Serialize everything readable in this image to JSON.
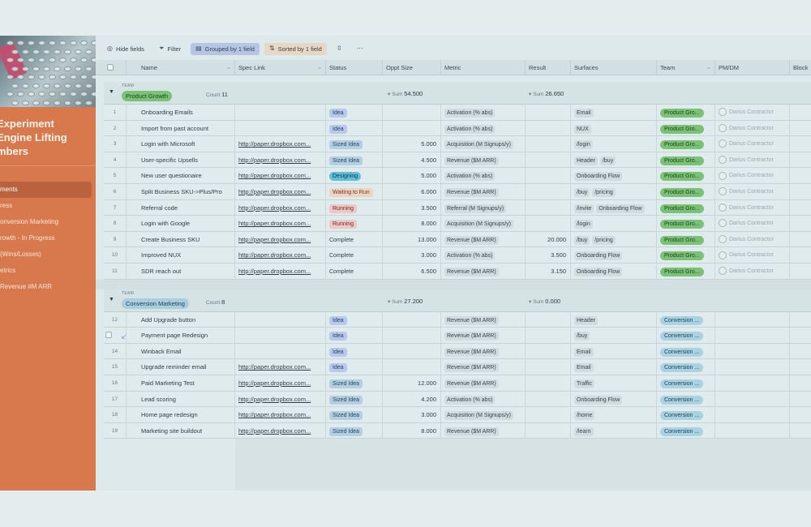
{
  "sidebar": {
    "title_lines": [
      "Experiment",
      "Engine Lifting",
      "mbers"
    ],
    "nav": [
      "ments",
      "ress",
      "onversion Marketing",
      "rowth - In Progress",
      "(Wins/Losses)",
      "etrics",
      "Revenue #M ARR"
    ],
    "active_index": 0
  },
  "toolbar": {
    "hide_fields": "Hide fields",
    "filter": "Filter",
    "grouped": "Grouped by 1 field",
    "sorted": "Sorted by 1 field"
  },
  "columns": {
    "name": "Name",
    "spec_link": "Spec Link",
    "status": "Status",
    "oppt_size": "Oppt Size",
    "metric": "Metric",
    "result": "Result",
    "surfaces": "Surfaces",
    "team": "Team",
    "pm_dm": "PM/DM",
    "block": "Block"
  },
  "groups": [
    {
      "label": "TEAM",
      "name": "Product Growth",
      "count_label": "Count",
      "count": "11",
      "oppt_sum_label": "Sum",
      "oppt_sum": "54.500",
      "result_sum_label": "Sum",
      "result_sum": "26.650",
      "rows": [
        {
          "n": "1",
          "name": "Onboarding Emails",
          "link": "",
          "status": "Idea",
          "sk": "idea",
          "oppt": "",
          "metric": "Activation (% abs)",
          "result": "",
          "surfaces": [
            "Email"
          ],
          "team": "Product Gro...",
          "pm": "Darius Contractor"
        },
        {
          "n": "2",
          "name": "Import from past account",
          "link": "",
          "status": "Idea",
          "sk": "idea",
          "oppt": "",
          "metric": "Activation (% abs)",
          "result": "",
          "surfaces": [
            "NUX"
          ],
          "team": "Product Gro...",
          "pm": "Darius Contractor"
        },
        {
          "n": "3",
          "name": "Login with Microsoft",
          "link": "http://paper.dropbox.com...",
          "status": "Sized Idea",
          "sk": "sized",
          "oppt": "5.000",
          "metric": "Acquisition (M Signups/y)",
          "result": "",
          "surfaces": [
            "/login"
          ],
          "team": "Product Gro...",
          "pm": "Darius Contractor"
        },
        {
          "n": "4",
          "name": "User-specific Upsells",
          "link": "http://paper.dropbox.com...",
          "status": "Sized Idea",
          "sk": "sized",
          "oppt": "4.500",
          "metric": "Revenue ($M ARR)",
          "result": "",
          "surfaces": [
            "Header",
            "/buy"
          ],
          "team": "Product Gro...",
          "pm": "Darius Contractor"
        },
        {
          "n": "5",
          "name": "New user questionaire",
          "link": "http://paper.dropbox.com...",
          "status": "Designing",
          "sk": "design",
          "oppt": "5.000",
          "metric": "Activation (% abs)",
          "result": "",
          "surfaces": [
            "Onboarding Flow"
          ],
          "team": "Product Gro...",
          "pm": "Darius Contractor"
        },
        {
          "n": "6",
          "name": "Split Business SKU->Plus/Pro",
          "link": "http://paper.dropbox.com...",
          "status": "Waiting to Run",
          "sk": "wait",
          "oppt": "6.000",
          "metric": "Revenue ($M ARR)",
          "result": "",
          "surfaces": [
            "/buy",
            "/pricing"
          ],
          "team": "Product Gro...",
          "pm": "Darius Contractor"
        },
        {
          "n": "7",
          "name": "Referral code",
          "link": "http://paper.dropbox.com...",
          "status": "Running",
          "sk": "run",
          "oppt": "3.500",
          "metric": "Referral (M Signups/y)",
          "result": "",
          "surfaces": [
            "/invite",
            "Onboarding Flow"
          ],
          "team": "Product Gro...",
          "pm": "Darius Contractor"
        },
        {
          "n": "8",
          "name": "Login with Google",
          "link": "http://paper.dropbox.com...",
          "status": "Running",
          "sk": "run",
          "oppt": "8.000",
          "metric": "Acquisition (M Signups/y)",
          "result": "",
          "surfaces": [
            "/login"
          ],
          "team": "Product Gro...",
          "pm": "Darius Contractor"
        },
        {
          "n": "9",
          "name": "Create Business SKU",
          "link": "http://paper.dropbox.com...",
          "status": "Complete",
          "sk": "complete",
          "oppt": "13.000",
          "metric": "Revenue ($M ARR)",
          "result": "20.000",
          "surfaces": [
            "/buy",
            "/pricing"
          ],
          "team": "Product Gro...",
          "pm": "Darius Contractor"
        },
        {
          "n": "10",
          "name": "Improved NUX",
          "link": "http://paper.dropbox.com...",
          "status": "Complete",
          "sk": "complete",
          "oppt": "3.000",
          "metric": "Activation (% abs)",
          "result": "3.500",
          "surfaces": [
            "Onboarding Flow"
          ],
          "team": "Product Gro...",
          "pm": "Darius Contractor"
        },
        {
          "n": "11",
          "name": "SDR reach out",
          "link": "http://paper.dropbox.com...",
          "status": "Complete",
          "sk": "complete",
          "oppt": "6.500",
          "metric": "Revenue ($M ARR)",
          "result": "3.150",
          "surfaces": [
            "Onboarding Flow"
          ],
          "team": "Product Gro...",
          "pm": "Darius Contractor"
        }
      ]
    },
    {
      "label": "TEAM",
      "name": "Conversion Marketing",
      "count_label": "Count",
      "count": "8",
      "oppt_sum_label": "Sum",
      "oppt_sum": "27.200",
      "result_sum_label": "Sum",
      "result_sum": "0.000",
      "rows": [
        {
          "n": "12",
          "name": "Add Upgrade button",
          "link": "",
          "status": "Idea",
          "sk": "idea",
          "oppt": "",
          "metric": "Revenue ($M ARR)",
          "result": "",
          "surfaces": [
            "Header"
          ],
          "team": "Conversion ...",
          "pm": ""
        },
        {
          "n": "13",
          "name": "Payment page Redesign",
          "link": "",
          "status": "Idea",
          "sk": "idea",
          "oppt": "",
          "metric": "Revenue ($M ARR)",
          "result": "",
          "surfaces": [
            "/buy"
          ],
          "team": "Conversion ...",
          "pm": ""
        },
        {
          "n": "14",
          "name": "Winback Email",
          "link": "",
          "status": "Idea",
          "sk": "idea",
          "oppt": "",
          "metric": "Revenue ($M ARR)",
          "result": "",
          "surfaces": [
            "Email"
          ],
          "team": "Conversion ...",
          "pm": ""
        },
        {
          "n": "15",
          "name": "Upgrade reminder email",
          "link": "http://paper.dropbox.com...",
          "status": "Idea",
          "sk": "idea",
          "oppt": "",
          "metric": "Revenue ($M ARR)",
          "result": "",
          "surfaces": [
            "Email"
          ],
          "team": "Conversion ...",
          "pm": ""
        },
        {
          "n": "16",
          "name": "Paid Marketing Test",
          "link": "http://paper.dropbox.com...",
          "status": "Sized Idea",
          "sk": "sized",
          "oppt": "12.000",
          "metric": "Revenue ($M ARR)",
          "result": "",
          "surfaces": [
            "Traffic"
          ],
          "team": "Conversion ...",
          "pm": ""
        },
        {
          "n": "17",
          "name": "Lead scoring",
          "link": "http://paper.dropbox.com...",
          "status": "Sized Idea",
          "sk": "sized",
          "oppt": "4.200",
          "metric": "Activation (% abs)",
          "result": "",
          "surfaces": [
            "Onboarding Flow"
          ],
          "team": "Conversion ...",
          "pm": ""
        },
        {
          "n": "18",
          "name": "Home page redesign",
          "link": "http://paper.dropbox.com...",
          "status": "Sized Idea",
          "sk": "sized",
          "oppt": "3.000",
          "metric": "Acquisition (M Signups/y)",
          "result": "",
          "surfaces": [
            "/home"
          ],
          "team": "Conversion ...",
          "pm": ""
        },
        {
          "n": "19",
          "name": "Marketing site buildout",
          "link": "http://paper.dropbox.com...",
          "status": "Sized Idea",
          "sk": "sized",
          "oppt": "8.000",
          "metric": "Revenue ($M ARR)",
          "result": "",
          "surfaces": [
            "/learn"
          ],
          "team": "Conversion ...",
          "pm": ""
        }
      ]
    }
  ]
}
